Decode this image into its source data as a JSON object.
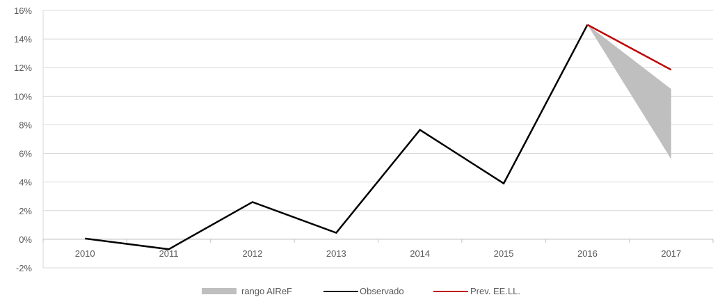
{
  "chart_data": {
    "type": "line",
    "categories": [
      "2010",
      "2011",
      "2012",
      "2013",
      "2014",
      "2015",
      "2016",
      "2017"
    ],
    "series": [
      {
        "name": "rango AIReF",
        "kind": "range-area",
        "color": "#bfbfbf",
        "x": [
          "2016",
          "2017"
        ],
        "low": [
          15.0,
          5.6
        ],
        "high": [
          15.0,
          10.5
        ]
      },
      {
        "name": "Observado",
        "kind": "line",
        "color": "#000000",
        "values": [
          0.05,
          -0.7,
          2.6,
          0.45,
          7.65,
          3.9,
          15.0,
          null
        ]
      },
      {
        "name": "Prev. EE.LL.",
        "kind": "line",
        "color": "#c00000",
        "x": [
          "2016",
          "2017"
        ],
        "values": [
          15.0,
          11.85
        ]
      }
    ],
    "ylim": [
      -2,
      16
    ],
    "yticks": [
      "-2%",
      "0%",
      "2%",
      "4%",
      "6%",
      "8%",
      "10%",
      "12%",
      "14%",
      "16%"
    ],
    "ytick_values": [
      -2,
      0,
      2,
      4,
      6,
      8,
      10,
      12,
      14,
      16
    ],
    "ylabel": "",
    "xlabel": "",
    "title": "",
    "grid": true,
    "legend_position": "bottom-center",
    "legend": [
      "rango AIReF",
      "Observado",
      "Prev. EE.LL."
    ]
  }
}
